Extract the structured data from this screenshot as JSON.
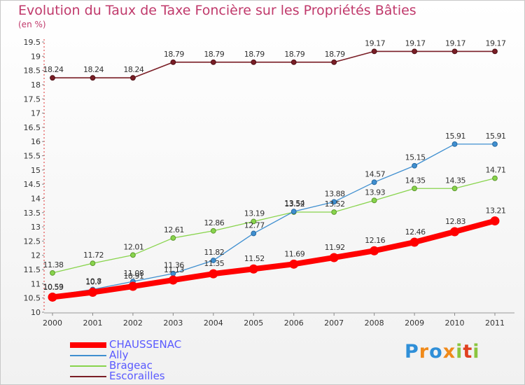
{
  "chart_data": {
    "type": "line",
    "title": "Evolution du Taux de Taxe Foncière sur les Propriétés Bâties",
    "subtitle": "(en %)",
    "x": [
      "2000",
      "2001",
      "2002",
      "2003",
      "2004",
      "2005",
      "2006",
      "2007",
      "2008",
      "2009",
      "2010",
      "2011"
    ],
    "ylim": [
      10,
      19.5
    ],
    "yticks": [
      "10",
      "10.5",
      "11",
      "11.5",
      "12",
      "12.5",
      "13",
      "13.5",
      "14",
      "14.5",
      "15",
      "15.5",
      "16",
      "16.5",
      "17",
      "17.5",
      "18",
      "18.5",
      "19",
      "19.5"
    ],
    "grid": false,
    "legend_position": "bottom-left",
    "series": [
      {
        "name": "CHAUSSENAC",
        "color": "#ff0000",
        "values": [
          10.53,
          10.7,
          10.91,
          11.13,
          11.35,
          11.52,
          11.69,
          11.92,
          12.16,
          12.46,
          12.83,
          13.21
        ],
        "labels": [
          "10.53",
          "10.7",
          "10.91",
          "11.13",
          "11.35",
          "11.52",
          "11.69",
          "11.92",
          "12.16",
          "12.46",
          "12.83",
          "13.21"
        ]
      },
      {
        "name": "Ally",
        "color": "#3f8fd0",
        "values": [
          10.59,
          10.8,
          11.08,
          11.36,
          11.82,
          12.77,
          13.54,
          13.88,
          14.57,
          15.15,
          15.91,
          15.91
        ],
        "labels": [
          "10.59",
          "10.8",
          "11.08",
          "11.36",
          "11.82",
          "12.77",
          "13.54",
          "13.88",
          "14.57",
          "15.15",
          "15.91",
          "15.91"
        ]
      },
      {
        "name": "Brageac",
        "color": "#88d44c",
        "values": [
          11.38,
          11.72,
          12.01,
          12.61,
          12.86,
          13.19,
          13.52,
          13.52,
          13.93,
          14.35,
          14.35,
          14.71
        ],
        "labels": [
          "11.38",
          "11.72",
          "12.01",
          "12.61",
          "12.86",
          "13.19",
          "13.52",
          "13.52",
          "13.93",
          "14.35",
          "14.35",
          "14.71"
        ]
      },
      {
        "name": "Escorailles",
        "color": "#7a1e26",
        "values": [
          18.24,
          18.24,
          18.24,
          18.79,
          18.79,
          18.79,
          18.79,
          18.79,
          19.17,
          19.17,
          19.17,
          19.17
        ],
        "labels": [
          "18.24",
          "18.24",
          "18.24",
          "18.79",
          "18.79",
          "18.79",
          "18.79",
          "18.79",
          "19.17",
          "19.17",
          "19.17",
          "19.17"
        ]
      }
    ]
  },
  "logo": {
    "text": "Proxiti",
    "colors": [
      "#2f8fd8",
      "#f08a1a",
      "#2f8fd8",
      "#f08a1a",
      "#8bc53f",
      "#e04020",
      "#8bc53f"
    ]
  }
}
